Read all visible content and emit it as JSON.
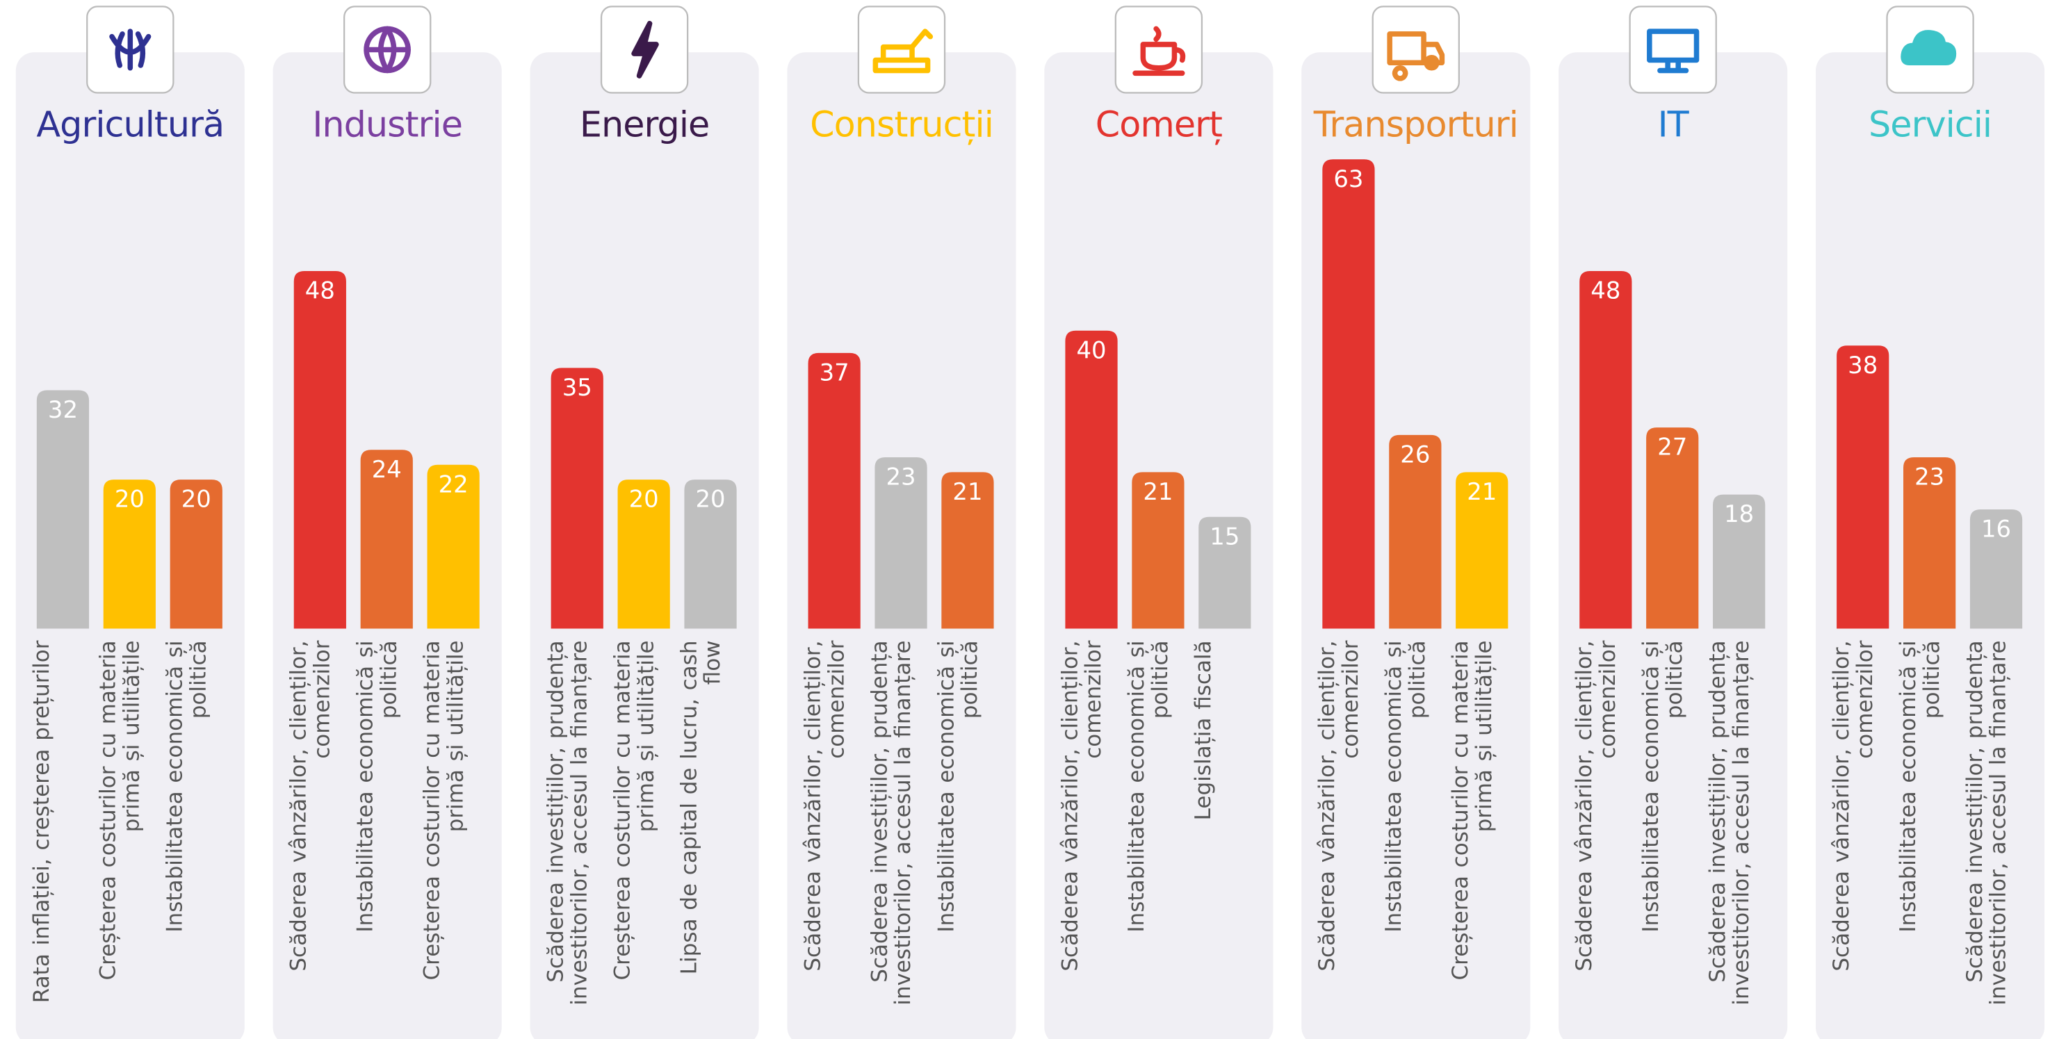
{
  "chart_data": [
    {
      "type": "bar",
      "title": "Agricultură",
      "title_color": "#2e3192",
      "categories": [
        "Rata inflației, creșterea prețurilor",
        "Creșterea costurilor cu materia primă și utilitățile",
        "Instabilitatea economică și politică"
      ],
      "values": [
        32,
        20,
        20
      ],
      "colors": [
        "#bfbfbf",
        "#ffc000",
        "#e56b2f"
      ]
    },
    {
      "type": "bar",
      "title": "Industrie",
      "title_color": "#7b3fa0",
      "categories": [
        "Scăderea vânzărilor, clienților, comenzilor",
        "Instabilitatea economică și politică",
        "Creșterea costurilor cu materia primă și utilitățile"
      ],
      "values": [
        48,
        24,
        22
      ],
      "colors": [
        "#e3342f",
        "#e56b2f",
        "#ffc000"
      ]
    },
    {
      "type": "bar",
      "title": "Energie",
      "title_color": "#3a1a4a",
      "categories": [
        "Scăderea investițiilor, prudența investitorilor, accesul la finanțare",
        "Creșterea costurilor cu materia primă și utilitățile",
        "Lipsa de capital de lucru, cash flow"
      ],
      "values": [
        35,
        20,
        20
      ],
      "colors": [
        "#e3342f",
        "#ffc000",
        "#bfbfbf"
      ]
    },
    {
      "type": "bar",
      "title": "Construcții",
      "title_color": "#ffc000",
      "categories": [
        "Scăderea vânzărilor, clienților, comenzilor",
        "Scăderea investițiilor, prudența investitorilor, accesul la finanțare",
        "Instabilitatea economică și politică"
      ],
      "values": [
        37,
        23,
        21
      ],
      "colors": [
        "#e3342f",
        "#bfbfbf",
        "#e56b2f"
      ]
    },
    {
      "type": "bar",
      "title": "Comerț",
      "title_color": "#e3342f",
      "categories": [
        "Scăderea vânzărilor, clienților, comenzilor",
        "Instabilitatea economică și politică",
        "Legislația fiscală"
      ],
      "values": [
        40,
        21,
        15
      ],
      "colors": [
        "#e3342f",
        "#e56b2f",
        "#bfbfbf"
      ]
    },
    {
      "type": "bar",
      "title": "Transporturi",
      "title_color": "#e88a2f",
      "categories": [
        "Scăderea vânzărilor, clienților, comenzilor",
        "Instabilitatea economică și politică",
        "Creșterea costurilor cu materia primă și utilitățile"
      ],
      "values": [
        63,
        26,
        21
      ],
      "colors": [
        "#e3342f",
        "#e56b2f",
        "#ffc000"
      ]
    },
    {
      "type": "bar",
      "title": "IT",
      "title_color": "#1f7bd1",
      "categories": [
        "Scăderea vânzărilor, clienților, comenzilor",
        "Instabilitatea economică și politică",
        "Scăderea investițiilor, prudența investitorilor, accesul la finanțare"
      ],
      "values": [
        48,
        27,
        18
      ],
      "colors": [
        "#e3342f",
        "#e56b2f",
        "#bfbfbf"
      ]
    },
    {
      "type": "bar",
      "title": "Servicii",
      "title_color": "#3cc4c8",
      "categories": [
        "Scăderea vânzărilor, clienților, comenzilor",
        "Instabilitatea economică și politică",
        "Scăderea investițiilor, prudența investitorilor, accesul la finanțare"
      ],
      "values": [
        38,
        23,
        16
      ],
      "colors": [
        "#e3342f",
        "#e56b2f",
        "#bfbfbf"
      ]
    }
  ]
}
